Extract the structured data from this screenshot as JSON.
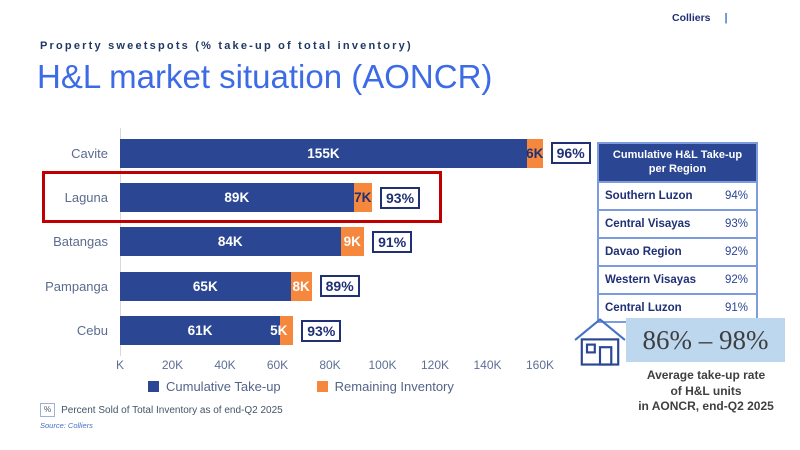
{
  "brand": {
    "name": "Colliers",
    "separator": "|"
  },
  "header": {
    "eyebrow": "Property sweetspots (% take-up of total inventory)",
    "title": "H&L market situation (AONCR)"
  },
  "chart_data": {
    "type": "bar",
    "orientation": "horizontal",
    "title": "H&L market situation (AONCR)",
    "categories": [
      "Cavite",
      "Laguna",
      "Batangas",
      "Pampanga",
      "Cebu"
    ],
    "series": [
      {
        "name": "Cumulative Take-up",
        "color": "#2B4794",
        "values": [
          155,
          89,
          84,
          65,
          61
        ],
        "labels": [
          "155K",
          "89K",
          "84K",
          "65K",
          "61K"
        ],
        "label_colors": [
          "#FFFFFF",
          "#FFFFFF",
          "#FFFFFF",
          "#FFFFFF",
          "#FFFFFF"
        ]
      },
      {
        "name": "Remaining Inventory",
        "color": "#F6883D",
        "values": [
          6,
          7,
          9,
          8,
          5
        ],
        "labels": [
          "6K",
          "7K",
          "9K",
          "8K",
          "5K"
        ],
        "label_colors": [
          "#1F3075",
          "#1F3075",
          "#FFFFFF",
          "#FFFFFF",
          "#FFFFFF"
        ]
      }
    ],
    "percent_labels": [
      "96%",
      "93%",
      "91%",
      "89%",
      "93%"
    ],
    "x_ticks": [
      "K",
      "20K",
      "40K",
      "60K",
      "80K",
      "100K",
      "120K",
      "140K",
      "160K"
    ],
    "xlim": [
      0,
      160
    ],
    "unit": "K",
    "grid": false,
    "legend_position": "bottom",
    "highlighted_category": "Laguna"
  },
  "legend": {
    "items": [
      {
        "label": "Cumulative Take-up",
        "color": "#2B4794"
      },
      {
        "label": "Remaining Inventory",
        "color": "#F6883D"
      }
    ]
  },
  "table": {
    "title": "Cumulative H&L Take-up per Region",
    "rows": [
      {
        "region": "Southern Luzon",
        "value": "94%"
      },
      {
        "region": "Central Visayas",
        "value": "93%"
      },
      {
        "region": "Davao Region",
        "value": "92%"
      },
      {
        "region": "Western Visayas",
        "value": "92%"
      },
      {
        "region": "Central Luzon",
        "value": "91%"
      }
    ]
  },
  "callout": {
    "range": "86% – 98%",
    "caption_lines": [
      "Average take-up rate",
      "of H&L units",
      "in AONCR, end-Q2 2025"
    ],
    "house_icon": "house-icon",
    "background": "#BDD7EE"
  },
  "footnote": {
    "symbol": "%",
    "text": "Percent Sold of Total Inventory as of end-Q2 2025",
    "source": "Source: Colliers"
  }
}
